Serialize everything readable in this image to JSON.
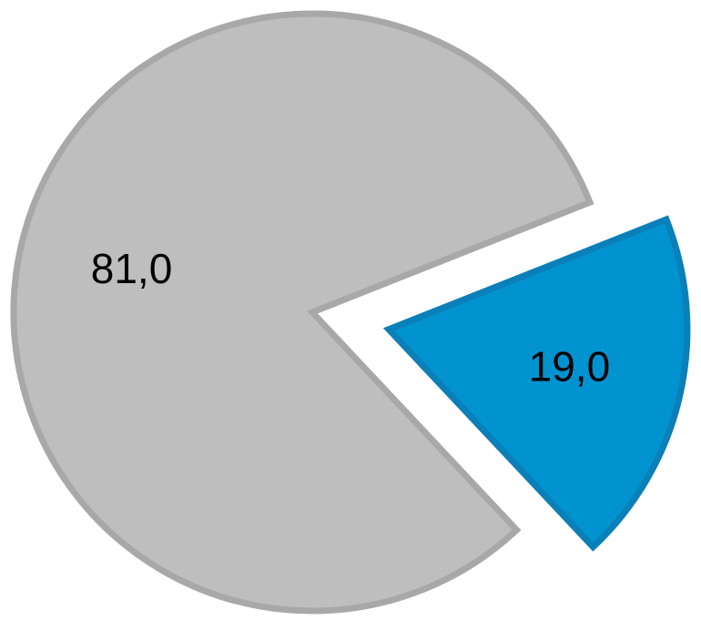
{
  "chart_data": {
    "type": "pie",
    "slices": [
      {
        "label": "81,0",
        "value": 81.0,
        "color": "#BEBEBE",
        "stroke": "#A8A8A8",
        "exploded": false
      },
      {
        "label": "19,0",
        "value": 19.0,
        "color": "#0093D0",
        "stroke": "#0A7FB8",
        "exploded": true
      }
    ],
    "title": "",
    "legend": "none"
  }
}
